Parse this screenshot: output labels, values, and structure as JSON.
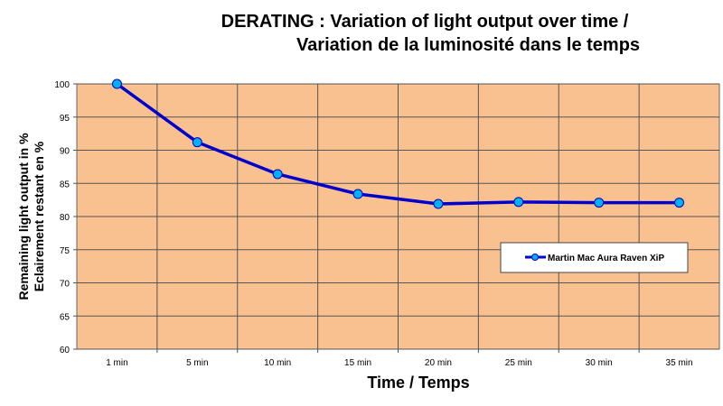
{
  "chart_data": {
    "type": "line",
    "title": [
      "DERATING : Variation of light output over time /",
      "Variation de la luminosité dans le temps"
    ],
    "xlabel": "Time / Temps",
    "ylabel": [
      "Remaining light output in %",
      "Eclairement restant en %"
    ],
    "categories": [
      "1 min",
      "5 min",
      "10 min",
      "15 min",
      "20 min",
      "25 min",
      "30 min",
      "35 min"
    ],
    "series": [
      {
        "name": "Martin Mac Aura Raven XiP",
        "values": [
          100,
          91.2,
          86.4,
          83.4,
          81.9,
          82.2,
          82.1,
          82.1
        ],
        "color": "#0000cc",
        "marker_color": "#00b0f0"
      }
    ],
    "ylim": [
      60,
      100
    ],
    "yticks": [
      60,
      65,
      70,
      75,
      80,
      85,
      90,
      95,
      100
    ],
    "grid": true,
    "plot_background": "#f9c090",
    "legend_position": "right"
  }
}
